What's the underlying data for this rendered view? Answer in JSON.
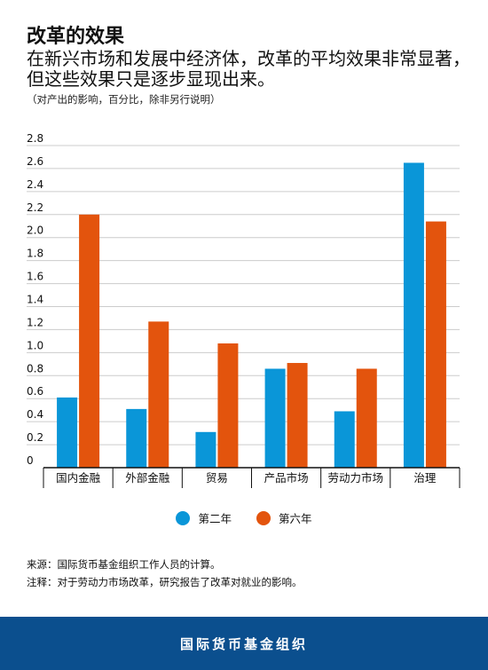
{
  "title": "改革的效果",
  "subtitle": "在新兴市场和发展中经济体，改革的平均效果非常显著，但这些效果只是逐步显现出来。",
  "note": "（对产出的影响，百分比，除非另行说明）",
  "source": "来源：国际货币基金组织工作人员的计算。",
  "footnote": "注释：对于劳动力市场改革，研究报告了改革对就业的影响。",
  "footer": "国际货币基金组织",
  "colors": {
    "series1": "#0a96d8",
    "series2": "#e3540d",
    "grid": "#cccccc",
    "axis": "#111111"
  },
  "chart_data": {
    "type": "bar",
    "categories": [
      "国内金融",
      "外部金融",
      "贸易",
      "产品市场",
      "劳动力市场",
      "治理"
    ],
    "series": [
      {
        "name": "第二年",
        "values": [
          0.61,
          0.51,
          0.31,
          0.86,
          0.49,
          2.65
        ]
      },
      {
        "name": "第六年",
        "values": [
          2.2,
          1.27,
          1.08,
          0.91,
          0.86,
          2.14
        ]
      }
    ],
    "ylim": [
      0,
      2.8
    ],
    "yticks": [
      "0",
      "0.2",
      "0.4",
      "0.6",
      "0.8",
      "1.0",
      "1.2",
      "1.4",
      "1.6",
      "1.8",
      "2.0",
      "2.2",
      "2.4",
      "2.6",
      "2.8"
    ],
    "grid": true,
    "legend": "bottom"
  }
}
